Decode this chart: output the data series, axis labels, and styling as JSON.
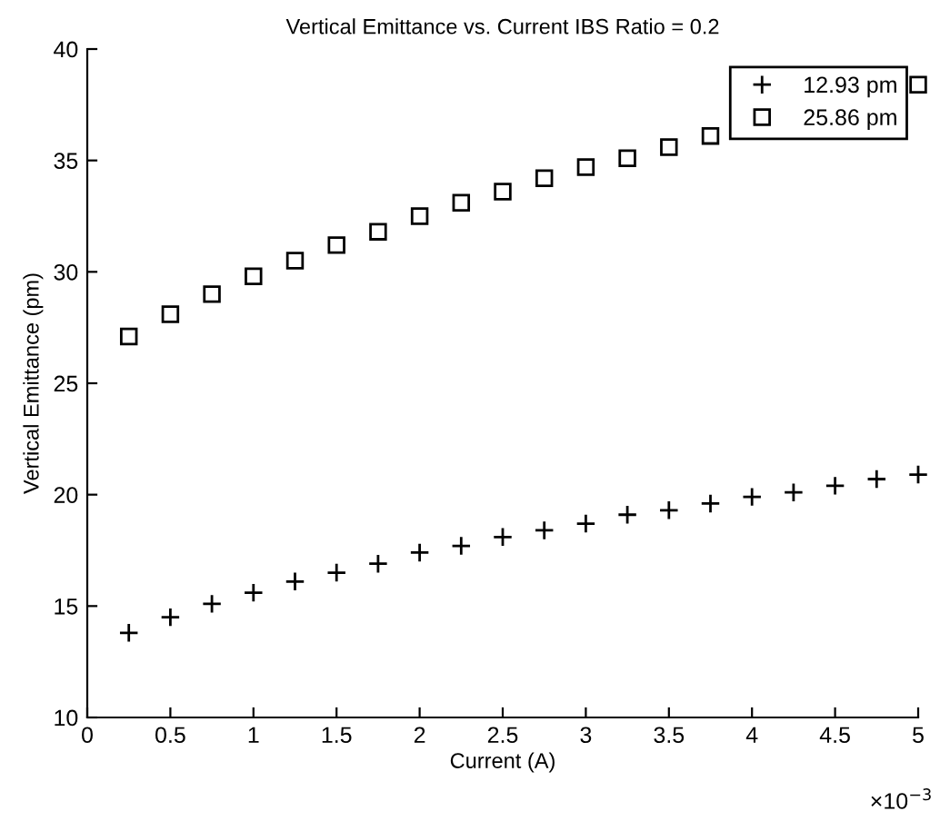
{
  "chart_data": {
    "type": "scatter",
    "title": "Vertical Emittance vs. Current IBS Ratio = 0.2",
    "xlabel": "Current (A)",
    "ylabel": "Vertical Emittance (pm)",
    "x": [
      0.25,
      0.5,
      0.75,
      1,
      1.25,
      1.5,
      1.75,
      2,
      2.25,
      2.5,
      2.75,
      3,
      3.25,
      3.5,
      3.75,
      4,
      4.25,
      4.5,
      4.75,
      5
    ],
    "series": [
      {
        "name": "12.93 pm",
        "color": "#000000",
        "marker": "cross",
        "values": [
          13.8,
          14.5,
          15.1,
          15.6,
          16.1,
          16.5,
          16.9,
          17.4,
          17.7,
          18.1,
          18.4,
          18.7,
          19.1,
          19.3,
          19.6,
          19.9,
          20.1,
          20.4,
          20.7,
          20.9
        ]
      },
      {
        "name": "25.86 pm",
        "color": "#000000",
        "marker": "square",
        "values": [
          27.1,
          28.1,
          29.0,
          29.8,
          30.5,
          31.2,
          31.8,
          32.5,
          33.1,
          33.6,
          34.2,
          34.7,
          35.1,
          35.6,
          36.1,
          null,
          null,
          null,
          null,
          38.4
        ]
      }
    ],
    "xlim": [
      0,
      5
    ],
    "xticks": [
      0,
      0.5,
      1,
      1.5,
      2,
      2.5,
      3,
      3.5,
      4,
      4.5,
      5
    ],
    "ylim": [
      10,
      40
    ],
    "yticks": [
      10,
      15,
      20,
      25,
      30,
      35,
      40
    ],
    "annotations": [
      "×10$^{−3}$"
    ],
    "grid": false,
    "legend": "top right"
  }
}
